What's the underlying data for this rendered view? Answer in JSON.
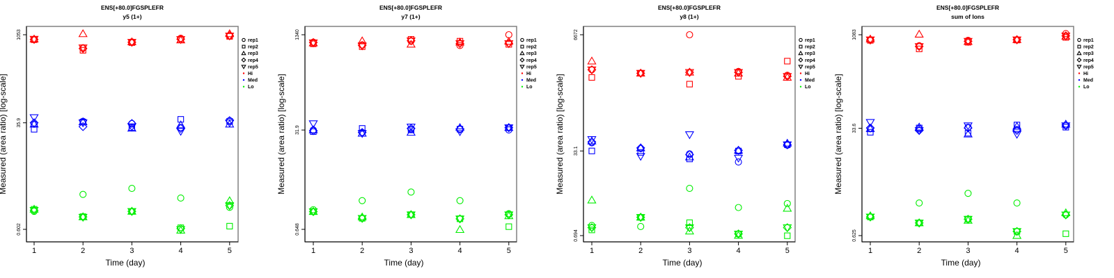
{
  "legend": {
    "shapes": [
      {
        "label": "rep1",
        "shape": "circle"
      },
      {
        "label": "rep2",
        "shape": "square"
      },
      {
        "label": "rep3",
        "shape": "triangle-up"
      },
      {
        "label": "rep4",
        "shape": "diamond"
      },
      {
        "label": "rep5",
        "shape": "triangle-down"
      }
    ],
    "groups": [
      {
        "label": "Hi",
        "color": "#ff0000"
      },
      {
        "label": "Med",
        "color": "#0000ff"
      },
      {
        "label": "Lo",
        "color": "#00ee00"
      }
    ],
    "placement": "right"
  },
  "chart_data": [
    {
      "type": "scatter",
      "title": "ENS[+80.0]FGSPLEFR",
      "subtitle": "y5 (1+)",
      "xlabel": "Time (day)",
      "ylabel": "Measured (area ratio) [log-scale]",
      "x_ticks": [
        "1",
        "2",
        "3",
        "4",
        "5"
      ],
      "y_ticks": [
        {
          "label": "1053",
          "value": 1053
        },
        {
          "label": "35.9",
          "value": 35.9
        },
        {
          "label": "0.602",
          "value": 0.602
        }
      ],
      "yscale": "log",
      "series": [
        {
          "group": "Hi",
          "rep": "rep1",
          "values": [
            880,
            640,
            800,
            920,
            1000
          ]
        },
        {
          "group": "Hi",
          "rep": "rep2",
          "values": [
            870,
            580,
            780,
            870,
            990
          ]
        },
        {
          "group": "Hi",
          "rep": "rep3",
          "values": [
            890,
            1090,
            800,
            860,
            1090
          ]
        },
        {
          "group": "Hi",
          "rep": "rep4",
          "values": [
            880,
            620,
            790,
            890,
            1020
          ]
        },
        {
          "group": "Hi",
          "rep": "rep5",
          "values": [
            890,
            640,
            790,
            880,
            1010
          ]
        },
        {
          "group": "Med",
          "rep": "rep1",
          "values": [
            34,
            38,
            35,
            30,
            39
          ]
        },
        {
          "group": "Med",
          "rep": "rep2",
          "values": [
            28,
            37,
            30,
            41,
            38
          ]
        },
        {
          "group": "Med",
          "rep": "rep3",
          "values": [
            34,
            37,
            29,
            33,
            34
          ]
        },
        {
          "group": "Med",
          "rep": "rep4",
          "values": [
            36,
            31,
            35,
            29,
            39
          ]
        },
        {
          "group": "Med",
          "rep": "rep5",
          "values": [
            44,
            36,
            31,
            26,
            36
          ]
        },
        {
          "group": "Lo",
          "rep": "rep1",
          "values": [
            1.2,
            2.3,
            2.9,
            2.0,
            1.4
          ]
        },
        {
          "group": "Lo",
          "rep": "rep2",
          "values": [
            1.3,
            0.98,
            1.2,
            0.64,
            0.68
          ]
        },
        {
          "group": "Lo",
          "rep": "rep3",
          "values": [
            1.3,
            0.97,
            1.2,
            0.58,
            1.8
          ]
        },
        {
          "group": "Lo",
          "rep": "rep4",
          "values": [
            1.25,
            0.97,
            1.2,
            0.62,
            1.5
          ]
        },
        {
          "group": "Lo",
          "rep": "rep5",
          "values": [
            1.25,
            0.96,
            1.2,
            0.6,
            1.5
          ]
        }
      ]
    },
    {
      "type": "scatter",
      "title": "ENS[+80.0]FGSPLEFR",
      "subtitle": "y7 (1+)",
      "xlabel": "Time (day)",
      "ylabel": "Measured (area ratio) [log-scale]",
      "x_ticks": [
        "1",
        "2",
        "3",
        "4",
        "5"
      ],
      "y_ticks": [
        {
          "label": "1340",
          "value": 1340
        },
        {
          "label": "31.9",
          "value": 31.9
        },
        {
          "label": "0.648",
          "value": 0.648
        }
      ],
      "yscale": "log",
      "series": [
        {
          "group": "Hi",
          "rep": "rep1",
          "values": [
            1000,
            900,
            1040,
            880,
            1340
          ]
        },
        {
          "group": "Hi",
          "rep": "rep2",
          "values": [
            940,
            840,
            1120,
            1040,
            920
          ]
        },
        {
          "group": "Hi",
          "rep": "rep3",
          "values": [
            970,
            1050,
            920,
            1000,
            1030
          ]
        },
        {
          "group": "Hi",
          "rep": "rep4",
          "values": [
            990,
            880,
            1060,
            950,
            960
          ]
        },
        {
          "group": "Hi",
          "rep": "rep5",
          "values": [
            980,
            870,
            1060,
            950,
            950
          ]
        },
        {
          "group": "Med",
          "rep": "rep1",
          "values": [
            31.9,
            29,
            33,
            33,
            32
          ]
        },
        {
          "group": "Med",
          "rep": "rep2",
          "values": [
            30,
            34,
            32,
            33,
            35
          ]
        },
        {
          "group": "Med",
          "rep": "rep3",
          "values": [
            32,
            28,
            29,
            35,
            35
          ]
        },
        {
          "group": "Med",
          "rep": "rep4",
          "values": [
            31,
            29,
            34,
            33,
            35
          ]
        },
        {
          "group": "Med",
          "rep": "rep5",
          "values": [
            41,
            28,
            36,
            30,
            35
          ]
        },
        {
          "group": "Lo",
          "rep": "rep1",
          "values": [
            1.4,
            2.0,
            2.8,
            2.0,
            1.2
          ]
        },
        {
          "group": "Lo",
          "rep": "rep2",
          "values": [
            1.3,
            1.0,
            1.15,
            0.98,
            0.72
          ]
        },
        {
          "group": "Lo",
          "rep": "rep3",
          "values": [
            1.3,
            1.05,
            1.15,
            0.64,
            1.1
          ]
        },
        {
          "group": "Lo",
          "rep": "rep4",
          "values": [
            1.3,
            1.0,
            1.15,
            0.98,
            1.15
          ]
        },
        {
          "group": "Lo",
          "rep": "rep5",
          "values": [
            1.3,
            1.0,
            1.15,
            0.98,
            1.15
          ]
        }
      ]
    },
    {
      "type": "scatter",
      "title": "ENS[+80.0]FGSPLEFR",
      "subtitle": "y8 (1+)",
      "xlabel": "Time (day)",
      "ylabel": "Measured (area ratio) [log-scale]",
      "x_ticks": [
        "1",
        "2",
        "3",
        "4",
        "5"
      ],
      "y_ticks": [
        {
          "label": "6672",
          "value": 6672
        },
        {
          "label": "33.1",
          "value": 33.1
        },
        {
          "label": "0.694",
          "value": 0.694
        }
      ],
      "yscale": "log",
      "series": [
        {
          "group": "Hi",
          "rep": "rep1",
          "values": [
            1350,
            1150,
            6672,
            1250,
            1050
          ]
        },
        {
          "group": "Hi",
          "rep": "rep2",
          "values": [
            950,
            1150,
            700,
            1000,
            2000
          ]
        },
        {
          "group": "Hi",
          "rep": "rep3",
          "values": [
            2000,
            1150,
            1200,
            1150,
            950
          ]
        },
        {
          "group": "Hi",
          "rep": "rep4",
          "values": [
            1350,
            1150,
            1200,
            1200,
            1000
          ]
        },
        {
          "group": "Hi",
          "rep": "rep5",
          "values": [
            1350,
            1150,
            1200,
            1200,
            1000
          ]
        },
        {
          "group": "Med",
          "rep": "rep1",
          "values": [
            48,
            37,
            29,
            20,
            43
          ]
        },
        {
          "group": "Med",
          "rep": "rep2",
          "values": [
            33.1,
            31,
            23,
            33,
            44
          ]
        },
        {
          "group": "Med",
          "rep": "rep3",
          "values": [
            52,
            38,
            25,
            34,
            47
          ]
        },
        {
          "group": "Med",
          "rep": "rep4",
          "values": [
            50,
            38,
            28,
            34,
            44
          ]
        },
        {
          "group": "Med",
          "rep": "rep5",
          "values": [
            56,
            26,
            70,
            24,
            44
          ]
        },
        {
          "group": "Lo",
          "rep": "rep1",
          "values": [
            1.1,
            1.05,
            6.0,
            2.5,
            3.0
          ]
        },
        {
          "group": "Lo",
          "rep": "rep2",
          "values": [
            0.9,
            1.6,
            1.25,
            0.75,
            0.69
          ]
        },
        {
          "group": "Lo",
          "rep": "rep3",
          "values": [
            3.5,
            1.6,
            0.85,
            0.7,
            2.4
          ]
        },
        {
          "group": "Lo",
          "rep": "rep4",
          "values": [
            1.0,
            1.6,
            1.0,
            0.75,
            1.0
          ]
        },
        {
          "group": "Lo",
          "rep": "rep5",
          "values": [
            1.0,
            1.6,
            1.0,
            0.75,
            1.0
          ]
        }
      ]
    },
    {
      "type": "scatter",
      "title": "ENS[+80.0]FGSPLEFR",
      "subtitle": "sum of Ions",
      "xlabel": "Time (day)",
      "ylabel": "Measured (area ratio) [log-scale]",
      "x_ticks": [
        "1",
        "2",
        "3",
        "4",
        "5"
      ],
      "y_ticks": [
        {
          "label": "1083",
          "value": 1083
        },
        {
          "label": "33.6",
          "value": 33.6
        },
        {
          "label": "0.625",
          "value": 0.625
        }
      ],
      "yscale": "log",
      "series": [
        {
          "group": "Hi",
          "rep": "rep1",
          "values": [
            900,
            720,
            880,
            900,
            1130
          ]
        },
        {
          "group": "Hi",
          "rep": "rep2",
          "values": [
            880,
            640,
            820,
            890,
            980
          ]
        },
        {
          "group": "Hi",
          "rep": "rep3",
          "values": [
            920,
            1100,
            840,
            900,
            1020
          ]
        },
        {
          "group": "Hi",
          "rep": "rep4",
          "values": [
            890,
            700,
            850,
            900,
            1040
          ]
        },
        {
          "group": "Hi",
          "rep": "rep5",
          "values": [
            900,
            700,
            850,
            900,
            1040
          ]
        },
        {
          "group": "Med",
          "rep": "rep1",
          "values": [
            33,
            33,
            35,
            32,
            37
          ]
        },
        {
          "group": "Med",
          "rep": "rep2",
          "values": [
            29,
            34,
            28,
            38,
            35
          ]
        },
        {
          "group": "Med",
          "rep": "rep3",
          "values": [
            33,
            35,
            27,
            36,
            39
          ]
        },
        {
          "group": "Med",
          "rep": "rep4",
          "values": [
            34,
            31,
            34,
            31,
            38
          ]
        },
        {
          "group": "Med",
          "rep": "rep5",
          "values": [
            42,
            31,
            37,
            27,
            37
          ]
        },
        {
          "group": "Lo",
          "rep": "rep1",
          "values": [
            1.25,
            2.1,
            3.0,
            2.1,
            1.35
          ]
        },
        {
          "group": "Lo",
          "rep": "rep2",
          "values": [
            1.25,
            1.0,
            1.15,
            0.73,
            0.67
          ]
        },
        {
          "group": "Lo",
          "rep": "rep3",
          "values": [
            1.3,
            1.0,
            1.1,
            0.625,
            1.45
          ]
        },
        {
          "group": "Lo",
          "rep": "rep4",
          "values": [
            1.25,
            1.0,
            1.15,
            0.73,
            1.35
          ]
        },
        {
          "group": "Lo",
          "rep": "rep5",
          "values": [
            1.25,
            1.0,
            1.15,
            0.73,
            1.35
          ]
        }
      ]
    }
  ]
}
